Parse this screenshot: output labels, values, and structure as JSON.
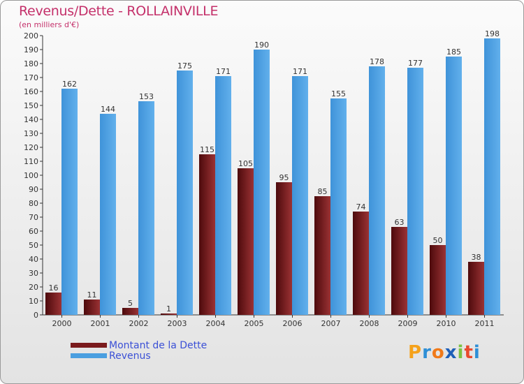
{
  "chart_data": {
    "type": "bar",
    "title": "Revenus/Dette - ROLLAINVILLE",
    "subtitle": "(en milliers d'€)",
    "categories": [
      "2000",
      "2001",
      "2002",
      "2003",
      "2004",
      "2005",
      "2006",
      "2007",
      "2008",
      "2009",
      "2010",
      "2011"
    ],
    "series": [
      {
        "name": "Montant de la Dette",
        "color": "#7a1a1c",
        "values": [
          16,
          11,
          5,
          1,
          115,
          105,
          95,
          85,
          74,
          63,
          50,
          38
        ]
      },
      {
        "name": "Revenus",
        "color": "#4a9fe0",
        "values": [
          162,
          144,
          153,
          175,
          171,
          190,
          171,
          155,
          178,
          177,
          185,
          198
        ]
      }
    ],
    "ylim": [
      0,
      200
    ],
    "ytick_step": 10,
    "grid": false,
    "legend_position": "bottom-left"
  },
  "logo": {
    "letters": [
      "P",
      "r",
      "o",
      "x",
      "i",
      "t",
      "i"
    ],
    "colors": [
      "#f5a21b",
      "#2e8fd6",
      "#f07a1a",
      "#1f5fb8",
      "#7cc242",
      "#e94a2e",
      "#2e8fd6"
    ]
  }
}
